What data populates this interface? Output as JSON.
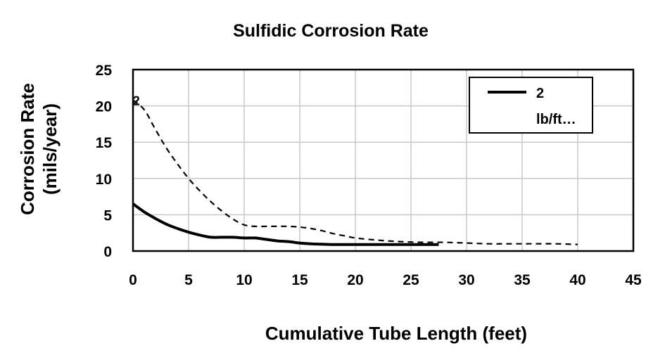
{
  "chart_data": {
    "type": "line",
    "title": "Sulfidic Corrosion Rate",
    "xlabel": "Cumulative Tube Length (feet)",
    "ylabel_line1": "Corrosion Rate",
    "ylabel_line2": "(mils/year)",
    "xlim": [
      0,
      45
    ],
    "ylim": [
      0,
      25
    ],
    "xticks": [
      0,
      5,
      10,
      15,
      20,
      25,
      30,
      35,
      40,
      45
    ],
    "yticks": [
      0,
      5,
      10,
      15,
      20,
      25
    ],
    "grid": true,
    "legend_position": "top-right",
    "series": [
      {
        "name": "2 lb/ft...",
        "legend_line1": "2",
        "legend_line2": "lb/ft…",
        "style": "solid",
        "color": "#000000",
        "x": [
          0,
          1,
          2,
          3,
          4,
          5,
          6,
          7,
          8,
          9,
          10,
          11,
          12,
          13,
          14,
          15,
          16,
          18,
          20,
          22,
          25,
          27.5
        ],
        "y": [
          6.5,
          5.4,
          4.5,
          3.7,
          3.1,
          2.6,
          2.2,
          1.9,
          1.9,
          1.9,
          1.8,
          1.8,
          1.6,
          1.4,
          1.3,
          1.1,
          1.0,
          0.9,
          0.9,
          0.9,
          0.9,
          0.9
        ]
      },
      {
        "name": "",
        "style": "dashed",
        "color": "#000000",
        "x": [
          0,
          1,
          2,
          3,
          4,
          5,
          6,
          7,
          8,
          9,
          10,
          11,
          12,
          13,
          14,
          15,
          16,
          17,
          18,
          19,
          20,
          22,
          24,
          26,
          28,
          30,
          32,
          34,
          36,
          38,
          40
        ],
        "y": [
          20.8,
          19.5,
          16.8,
          14.2,
          12.0,
          10.0,
          8.3,
          6.8,
          5.5,
          4.4,
          3.6,
          3.4,
          3.4,
          3.4,
          3.4,
          3.3,
          3.1,
          2.8,
          2.4,
          2.1,
          1.8,
          1.5,
          1.3,
          1.2,
          1.2,
          1.1,
          1.0,
          1.0,
          1.0,
          1.0,
          0.9
        ]
      }
    ],
    "annotations": [
      {
        "text": "2",
        "x": 0.3,
        "y": 20.7
      }
    ]
  }
}
